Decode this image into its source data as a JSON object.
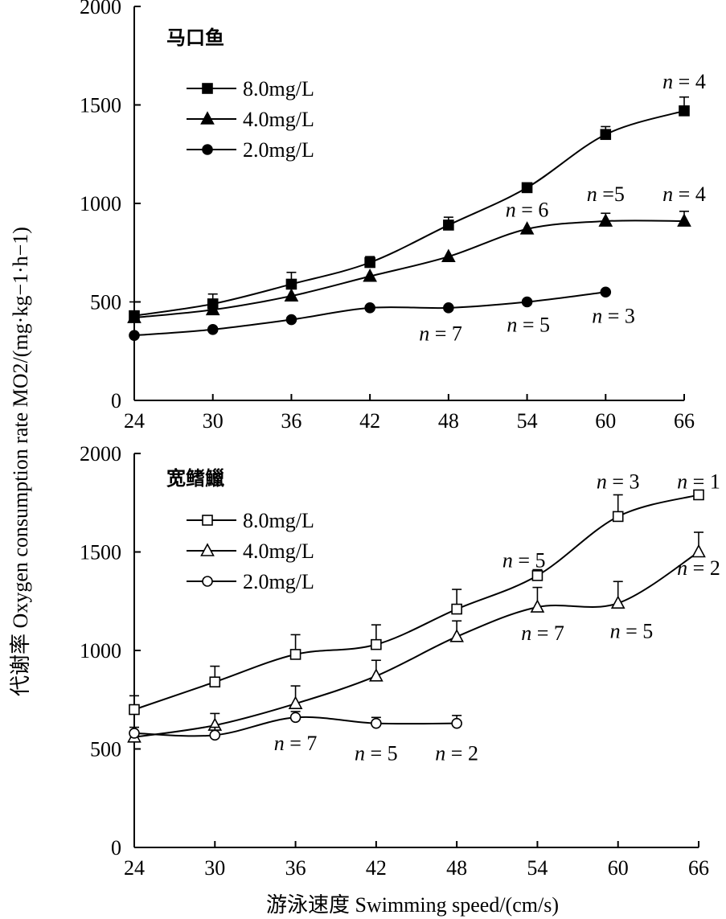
{
  "ylabel": "代谢率 Oxygen consumption rate MO2/(mg·kg−1·h−1)",
  "xlabel": "游泳速度 Swimming speed/(cm/s)",
  "chart_data": [
    {
      "type": "line",
      "title": "马口鱼",
      "x": [
        24,
        30,
        36,
        42,
        48,
        54,
        60,
        66
      ],
      "ylim": [
        0,
        2000
      ],
      "yticks": [
        0,
        500,
        1000,
        1500,
        2000
      ],
      "legend_position": "top-left",
      "marker_fill": "filled",
      "series": [
        {
          "name": "8.0mg/L",
          "marker": "square",
          "points": [
            [
              24,
              430
            ],
            [
              30,
              490
            ],
            [
              36,
              590
            ],
            [
              42,
              700
            ],
            [
              48,
              890
            ],
            [
              54,
              1080
            ],
            [
              60,
              1350
            ],
            [
              66,
              1470
            ]
          ],
          "errors": [
            70,
            50,
            60,
            30,
            40,
            0,
            40,
            70
          ]
        },
        {
          "name": "4.0mg/L",
          "marker": "triangle",
          "points": [
            [
              24,
              420
            ],
            [
              30,
              460
            ],
            [
              36,
              530
            ],
            [
              42,
              630
            ],
            [
              48,
              730
            ],
            [
              54,
              870
            ],
            [
              60,
              910
            ],
            [
              66,
              910
            ]
          ],
          "errors": [
            0,
            0,
            0,
            0,
            0,
            0,
            40,
            50
          ]
        },
        {
          "name": "2.0mg/L",
          "marker": "circle",
          "points": [
            [
              24,
              330
            ],
            [
              30,
              360
            ],
            [
              36,
              410
            ],
            [
              42,
              470
            ],
            [
              48,
              470
            ],
            [
              54,
              500
            ],
            [
              60,
              550
            ]
          ],
          "errors": [
            0,
            0,
            0,
            0,
            0,
            0,
            0
          ]
        }
      ],
      "annotations": [
        {
          "text": "n = 4",
          "x": 66,
          "y": 1620
        },
        {
          "text": "n = 4",
          "x": 66,
          "y": 1050
        },
        {
          "text": "n =5",
          "x": 60,
          "y": 1050
        },
        {
          "text": "n = 6",
          "x": 54,
          "y": 970
        },
        {
          "text": "n = 7",
          "x": 47.4,
          "y": 340
        },
        {
          "text": "n = 5",
          "x": 54.1,
          "y": 385
        },
        {
          "text": "n = 3",
          "x": 60.6,
          "y": 430
        }
      ]
    },
    {
      "type": "line",
      "title": "宽鳍鱲",
      "x": [
        24,
        30,
        36,
        42,
        48,
        54,
        60,
        66
      ],
      "ylim": [
        0,
        2000
      ],
      "yticks": [
        0,
        500,
        1000,
        1500,
        2000
      ],
      "legend_position": "top-left",
      "marker_fill": "open",
      "series": [
        {
          "name": "8.0mg/L",
          "marker": "square",
          "points": [
            [
              24,
              700
            ],
            [
              30,
              840
            ],
            [
              36,
              980
            ],
            [
              42,
              1030
            ],
            [
              48,
              1210
            ],
            [
              54,
              1380
            ],
            [
              60,
              1680
            ],
            [
              66,
              1790
            ]
          ],
          "errors": [
            70,
            80,
            100,
            100,
            100,
            30,
            110,
            0
          ]
        },
        {
          "name": "4.0mg/L",
          "marker": "triangle",
          "points": [
            [
              24,
              560
            ],
            [
              30,
              620
            ],
            [
              36,
              730
            ],
            [
              42,
              870
            ],
            [
              48,
              1070
            ],
            [
              54,
              1220
            ],
            [
              60,
              1240
            ],
            [
              66,
              1500
            ]
          ],
          "errors": [
            30,
            60,
            90,
            80,
            80,
            100,
            110,
            100
          ]
        },
        {
          "name": "2.0mg/L",
          "marker": "circle",
          "points": [
            [
              24,
              580
            ],
            [
              30,
              570
            ],
            [
              36,
              660
            ],
            [
              42,
              630
            ],
            [
              48,
              630
            ]
          ],
          "errors": [
            30,
            40,
            30,
            30,
            40
          ]
        }
      ],
      "annotations": [
        {
          "text": "n = 3",
          "x": 60,
          "y": 1860
        },
        {
          "text": "n = 1",
          "x": 66,
          "y": 1860
        },
        {
          "text": "n = 5",
          "x": 53,
          "y": 1460
        },
        {
          "text": "n = 2",
          "x": 66,
          "y": 1420
        },
        {
          "text": "n = 7",
          "x": 54.4,
          "y": 1090
        },
        {
          "text": "n = 5",
          "x": 61,
          "y": 1100
        },
        {
          "text": "n = 7",
          "x": 36,
          "y": 530
        },
        {
          "text": "n = 5",
          "x": 42,
          "y": 480
        },
        {
          "text": "n = 2",
          "x": 48,
          "y": 480
        }
      ]
    }
  ]
}
